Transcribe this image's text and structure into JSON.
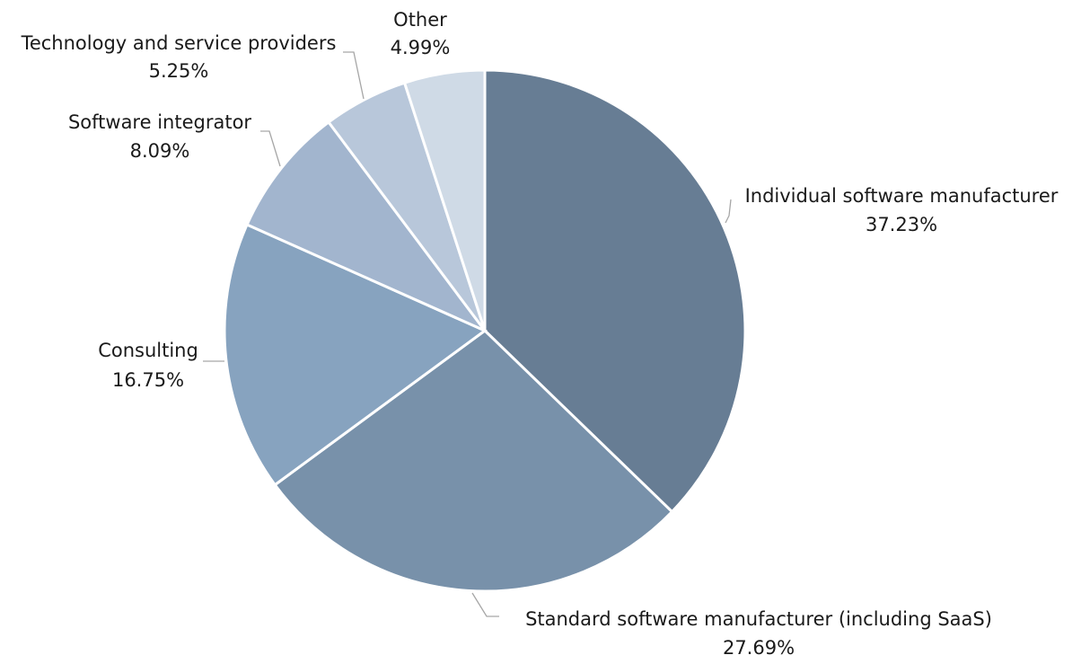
{
  "chart_data": {
    "type": "pie",
    "title": "",
    "colors": [
      "#677d94",
      "#7891aa",
      "#87a3bf",
      "#a2b5ce",
      "#b8c7da",
      "#cfdae6"
    ],
    "slices": [
      {
        "label": "Individual  software manufacturer",
        "value": 37.23,
        "value_label": "37.23%"
      },
      {
        "label": "Standard software manufacturer (including SaaS)",
        "value": 27.69,
        "value_label": "27.69%"
      },
      {
        "label": "Consulting",
        "value": 16.75,
        "value_label": "16.75%"
      },
      {
        "label": "Software integrator",
        "value": 8.09,
        "value_label": "8.09%"
      },
      {
        "label": "Technology  and service providers",
        "value": 5.25,
        "value_label": "5.25%"
      },
      {
        "label": "Other",
        "value": 4.99,
        "value_label": "4.99%"
      }
    ]
  }
}
